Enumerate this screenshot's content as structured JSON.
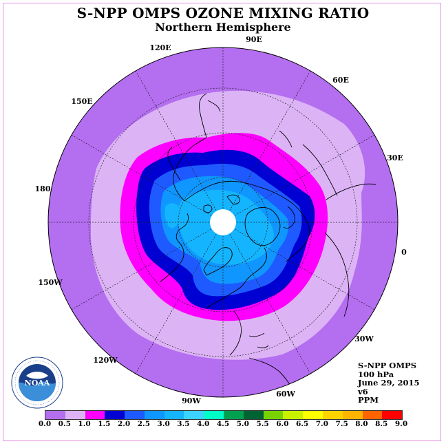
{
  "title": "S-NPP OMPS OZONE MIXING RATIO",
  "subtitle": "Northern Hemisphere",
  "meridian_labels": [
    "90E",
    "60E",
    "30E",
    "0",
    "30W",
    "60W",
    "90W",
    "120W",
    "150W",
    "180",
    "150E",
    "120E"
  ],
  "info": {
    "instrument": "S-NPP OMPS",
    "level": "100 hPa",
    "date": "June 29, 2015",
    "version": "v6",
    "units": "PPM"
  },
  "logo": {
    "name": "NOAA",
    "ring_text": "NATIONAL OCEANIC AND ATMOSPHERIC ADMINISTRATION · U.S. DEPARTMENT OF COMMERCE"
  },
  "colorbar": {
    "ticks": [
      "0.0",
      "0.5",
      "1.0",
      "1.5",
      "2.0",
      "2.5",
      "3.0",
      "3.5",
      "4.0",
      "4.5",
      "5.0",
      "5.5",
      "6.0",
      "6.5",
      "7.0",
      "7.5",
      "8.0",
      "8.5",
      "9.0"
    ],
    "colors": [
      "#b46ef0",
      "#dcb4f5",
      "#ff00ff",
      "#0000d2",
      "#1e5aff",
      "#0f96ff",
      "#14b4ff",
      "#3cd2ff",
      "#00ffc8",
      "#00a050",
      "#006432",
      "#78d200",
      "#c8f000",
      "#ffff00",
      "#ffd200",
      "#ffb400",
      "#ff6400",
      "#ff0000",
      "#7d4b32"
    ]
  },
  "map": {
    "zones": [
      {
        "range": "0.0-0.5 ppm",
        "color": "#b46ef0"
      },
      {
        "range": "0.5-1.0 ppm",
        "color": "#dcb4f5"
      },
      {
        "range": "1.0-1.5 ppm",
        "color": "#ff00ff"
      },
      {
        "range": "1.5-2.0 ppm",
        "color": "#0000d2"
      },
      {
        "range": "2.0-2.5 ppm",
        "color": "#1e5aff"
      },
      {
        "range": "2.5-3.0 ppm",
        "color": "#0f96ff"
      },
      {
        "range": "3.0-3.5 ppm",
        "color": "#14b4ff"
      }
    ],
    "no_data_color": "#ffffff"
  }
}
